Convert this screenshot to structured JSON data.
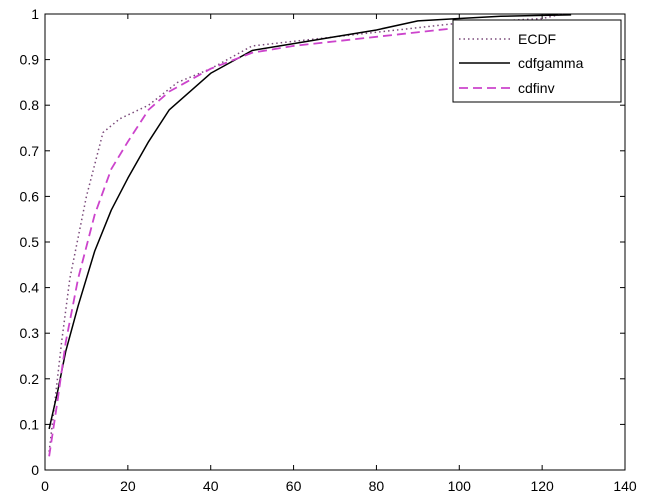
{
  "chart_data": {
    "type": "line",
    "title": "",
    "xlabel": "",
    "ylabel": "",
    "xlim": [
      0,
      140
    ],
    "ylim": [
      0,
      1
    ],
    "xticks": [
      0,
      20,
      40,
      60,
      80,
      100,
      120,
      140
    ],
    "yticks": [
      0,
      0.1,
      0.2,
      0.3,
      0.4,
      0.5,
      0.6,
      0.7,
      0.8,
      0.9,
      1
    ],
    "xtick_labels": [
      "0",
      "20",
      "40",
      "60",
      "80",
      "100",
      "120",
      "140"
    ],
    "ytick_labels": [
      "0",
      "0.1",
      "0.2",
      "0.3",
      "0.4",
      "0.5",
      "0.6",
      "0.7",
      "0.8",
      "0.9",
      "1"
    ],
    "grid": false,
    "legend_position": "top-right",
    "series": [
      {
        "name": "ECDF",
        "style": "dotted",
        "color": "#7a4a7a",
        "x": [
          1,
          2,
          4,
          6,
          10,
          14,
          18,
          25,
          32,
          40,
          50,
          55,
          70,
          80,
          100,
          120,
          125
        ],
        "y": [
          0.04,
          0.12,
          0.28,
          0.42,
          0.6,
          0.74,
          0.77,
          0.8,
          0.85,
          0.88,
          0.93,
          0.935,
          0.95,
          0.96,
          0.98,
          0.99,
          1.0
        ]
      },
      {
        "name": "cdfgamma",
        "style": "solid",
        "color": "#000000",
        "x": [
          1,
          3,
          5,
          8,
          12,
          16,
          20,
          25,
          30,
          40,
          50,
          60,
          70,
          80,
          90,
          100,
          110,
          120,
          127
        ],
        "y": [
          0.09,
          0.17,
          0.26,
          0.36,
          0.48,
          0.57,
          0.64,
          0.72,
          0.79,
          0.87,
          0.92,
          0.935,
          0.95,
          0.965,
          0.985,
          0.99,
          0.995,
          0.997,
          0.998
        ]
      },
      {
        "name": "cdfinv",
        "style": "dashed",
        "color": "#cc44cc",
        "x": [
          1,
          3,
          5,
          8,
          12,
          16,
          20,
          25,
          30,
          40,
          50,
          60,
          70,
          80,
          90,
          100,
          110,
          120,
          130
        ],
        "y": [
          0.03,
          0.15,
          0.28,
          0.42,
          0.56,
          0.66,
          0.72,
          0.79,
          0.83,
          0.88,
          0.915,
          0.93,
          0.94,
          0.95,
          0.96,
          0.97,
          0.975,
          0.98,
          0.985
        ]
      }
    ]
  }
}
